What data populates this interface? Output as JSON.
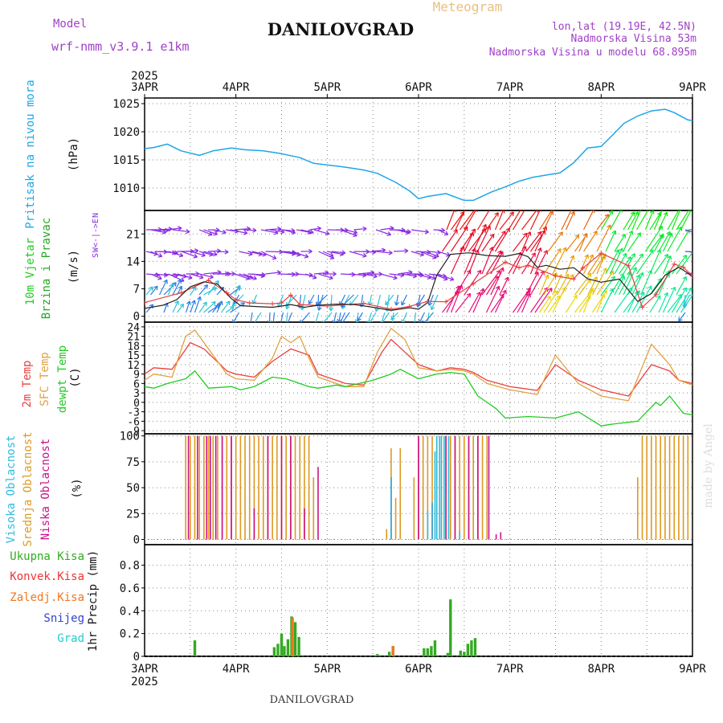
{
  "header": {
    "model_label": "Model",
    "model_name": "wrf-nmm_v3.9.1 e1km",
    "title": "DANILOVGRAD",
    "chart_kind": "Meteogram",
    "lonlat": "lon,lat (19.19E, 42.5N)",
    "elevation": "Nadmorska Visina 53m",
    "model_elevation": "Nadmorska Visina u modelu 68.895m",
    "footer_title": "DANILOVGRAD",
    "watermark": "made by Angel"
  },
  "colors": {
    "pressure": "#1ea6e8",
    "temp2m": "#e84040",
    "sfc": "#e2a040",
    "dew": "#22cc22",
    "high": "#33bbdd",
    "mid": "#dd9922",
    "low": "#cc1188",
    "total": "#33aa22",
    "conv": "#ee3333",
    "frozen": "#ee7722",
    "snow": "#3344cc",
    "graupel": "#22cccc",
    "wind_purple": "#8a2be2",
    "windlabel": "#22cc22",
    "brzina": "#22aa22"
  },
  "chart_data": {
    "type": "line",
    "x_unit": "days",
    "year": "2025",
    "x_ticks": [
      "3APR",
      "4APR",
      "5APR",
      "6APR",
      "7APR",
      "8APR",
      "9APR"
    ],
    "panels": [
      {
        "id": "pressure",
        "ylabel": "(hPa)",
        "side_labels": [
          "Pritisak na nivou mora"
        ],
        "ylim": [
          1006,
          1026
        ],
        "yticks": [
          1010,
          1015,
          1020,
          1025
        ],
        "series": [
          {
            "x": [
              0,
              0.1,
              0.25,
              0.4,
              0.6,
              0.75,
              0.95,
              1.1,
              1.3,
              1.5,
              1.7,
              1.85,
              2.05,
              2.2,
              2.4,
              2.55,
              2.75,
              2.9,
              3.0,
              3.1,
              3.3,
              3.5,
              3.6,
              3.8,
              3.95,
              4.1,
              4.25,
              4.4,
              4.55,
              4.7,
              4.85,
              5.0,
              5.1,
              5.25,
              5.4,
              5.55,
              5.7,
              5.8,
              5.95,
              6.0
            ],
            "y": [
              1017,
              1017.2,
              1017.8,
              1016.6,
              1015.8,
              1016.6,
              1017.1,
              1016.8,
              1016.6,
              1016.1,
              1015.4,
              1014.4,
              1014,
              1013.7,
              1013.2,
              1012.6,
              1011,
              1009.5,
              1008.1,
              1008.5,
              1009,
              1007.8,
              1007.8,
              1009.3,
              1010.2,
              1011.2,
              1011.9,
              1012.3,
              1012.7,
              1014.5,
              1017.1,
              1017.4,
              1019,
              1021.5,
              1022.8,
              1023.7,
              1024,
              1023.4,
              1022.1,
              1022
            ]
          }
        ]
      },
      {
        "id": "wind",
        "ylabel": "(m/s)",
        "side_labels": [
          "10m Vjetar",
          "Brzina i Pravac"
        ],
        "direction_key": [
          "N",
          "W<-|->E",
          "S"
        ],
        "ylim": [
          -1.5,
          27
        ],
        "yticks": [
          0,
          7,
          14,
          21
        ],
        "series": [
          {
            "name": "speed",
            "x": [
              0,
              0.2,
              0.35,
              0.5,
              0.65,
              0.8,
              0.95,
              1.05,
              1.2,
              1.4,
              1.5,
              1.6,
              1.75,
              1.9,
              2.1,
              2.3,
              2.5,
              2.7,
              2.9,
              3.0,
              3.1,
              3.2,
              3.35,
              3.55,
              3.75,
              3.95,
              4.1,
              4.2,
              4.3,
              4.4,
              4.55,
              4.7,
              4.85,
              5.0,
              5.2,
              5.4,
              5.55,
              5.7,
              5.85,
              5.95,
              6.0
            ],
            "y": [
              2,
              2.8,
              4.2,
              7.5,
              8.8,
              8.2,
              4.5,
              2.7,
              2.5,
              2.3,
              2.6,
              3,
              2.3,
              2.8,
              3.1,
              3,
              2.3,
              1.5,
              2.2,
              1.8,
              3.5,
              10.5,
              15.8,
              16.2,
              15.5,
              15.3,
              16,
              15.2,
              12.5,
              13,
              12,
              12.4,
              9.6,
              8.7,
              9.5,
              3.8,
              5.8,
              10.5,
              12.5,
              11,
              10
            ]
          },
          {
            "name": "gust",
            "x": [
              0,
              0.4,
              0.7,
              0.9,
              1.0,
              1.15,
              1.4,
              1.5,
              1.6,
              1.7,
              2.0,
              2.4,
              2.7,
              2.9,
              3.1,
              3.3,
              3.6,
              3.95,
              4.1,
              4.2,
              4.5,
              4.7,
              4.8,
              5.0,
              5.3,
              5.45,
              5.6,
              5.8,
              5.9,
              6.0
            ],
            "y": [
              3.5,
              6,
              9.2,
              6,
              4.2,
              3.4,
              3.2,
              3.4,
              5.4,
              3,
              2.6,
              3.3,
              1.8,
              2.5,
              3.8,
              3.7,
              8.3,
              13.8,
              12.4,
              13,
              10.3,
              9.5,
              12.3,
              16.1,
              12.9,
              2.3,
              5.5,
              13.3,
              12.5,
              10.3
            ]
          }
        ]
      },
      {
        "id": "temperature",
        "ylabel": "(C)",
        "side_labels": [
          "2m Temp",
          "SFC Temp",
          "dewpt Temp"
        ],
        "ylim": [
          -10,
          25.5
        ],
        "yticks": [
          -9,
          -6,
          -3,
          0,
          3,
          6,
          9,
          12,
          15,
          18,
          21,
          24
        ],
        "series": [
          {
            "name": "2m Temp",
            "x": [
              0,
              0.1,
              0.3,
              0.5,
              0.65,
              0.9,
              1.0,
              1.1,
              1.2,
              1.4,
              1.6,
              1.8,
              1.9,
              2.1,
              2.2,
              2.4,
              2.6,
              2.7,
              2.85,
              3.0,
              3.2,
              3.35,
              3.5,
              3.6,
              3.75,
              4.0,
              4.3,
              4.5,
              4.75,
              5.0,
              5.3,
              5.55,
              5.75,
              5.85,
              6.0
            ],
            "y": [
              9,
              11,
              10.5,
              19,
              17,
              10,
              9,
              8.5,
              8,
              13,
              17,
              15,
              9,
              7,
              6,
              5.5,
              16,
              20,
              16,
              12,
              10,
              11,
              10.5,
              9.5,
              7,
              5,
              3.8,
              12,
              7,
              4,
              2,
              12,
              10,
              7,
              6
            ]
          },
          {
            "name": "SFC Temp",
            "x": [
              0,
              0.1,
              0.3,
              0.45,
              0.55,
              0.65,
              0.9,
              1.0,
              1.2,
              1.4,
              1.5,
              1.6,
              1.7,
              1.8,
              1.9,
              2.1,
              2.2,
              2.4,
              2.55,
              2.7,
              2.85,
              3.0,
              3.2,
              3.35,
              3.5,
              3.6,
              3.75,
              4.0,
              4.3,
              4.5,
              4.75,
              5.0,
              5.3,
              5.55,
              5.75,
              5.85,
              6.0
            ],
            "y": [
              7,
              9,
              8,
              21,
              23,
              19,
              9,
              7.5,
              7,
              14,
              21,
              19,
              21,
              14,
              8,
              6,
              5,
              5,
              16,
              23.5,
              20,
              11,
              10,
              10.5,
              10,
              9,
              6,
              4,
              2.5,
              15,
              6,
              2,
              0.5,
              18.5,
              12,
              7,
              5.5
            ]
          },
          {
            "name": "dewpt Temp",
            "x": [
              0,
              0.1,
              0.25,
              0.45,
              0.55,
              0.7,
              0.95,
              1.05,
              1.2,
              1.4,
              1.55,
              1.8,
              1.9,
              2.1,
              2.2,
              2.5,
              2.7,
              2.8,
              3.0,
              3.2,
              3.35,
              3.5,
              3.65,
              3.85,
              3.95,
              4.2,
              4.5,
              4.75,
              5.0,
              5.1,
              5.4,
              5.6,
              5.65,
              5.75,
              5.9,
              6.0
            ],
            "y": [
              5,
              4.5,
              6,
              7.5,
              10,
              4.5,
              5,
              4,
              5,
              8,
              7.5,
              5,
              4.5,
              5.5,
              5,
              7,
              9,
              10.5,
              7.5,
              9,
              9.5,
              9,
              2,
              -2,
              -5,
              -4.5,
              -5,
              -3,
              -7.5,
              -7,
              -6,
              0,
              -1,
              2,
              -3.5,
              -4
            ]
          }
        ]
      },
      {
        "id": "clouds",
        "ylabel": "(%)",
        "side_labels": [
          "Visoka Oblacnost",
          "Srednja Oblacnost",
          "Niska Oblacnost"
        ],
        "ylim": [
          -5,
          102
        ],
        "yticks": [
          0,
          25,
          50,
          75,
          100
        ],
        "series": [
          {
            "name": "Srednja Oblacnost",
            "x": [
              0.45,
              0.5,
              0.55,
              0.6,
              0.65,
              0.7,
              0.75,
              0.8,
              0.85,
              0.9,
              0.95,
              1.0,
              1.05,
              1.1,
              1.15,
              1.2,
              1.25,
              1.3,
              1.35,
              1.4,
              1.45,
              1.5,
              1.55,
              1.6,
              1.65,
              1.7,
              1.75,
              1.8,
              1.85,
              2.65,
              2.7,
              2.75,
              2.8,
              2.95,
              3.0,
              3.05,
              3.1,
              3.15,
              3.2,
              3.25,
              3.3,
              3.35,
              3.4,
              3.45,
              3.5,
              3.55,
              3.6,
              3.65,
              3.7,
              3.75,
              5.4,
              5.45,
              5.5,
              5.55,
              5.6,
              5.65,
              5.7,
              5.75,
              5.8,
              5.85,
              5.9,
              5.95
            ],
            "y": [
              100,
              100,
              100,
              100,
              100,
              100,
              100,
              100,
              100,
              100,
              100,
              100,
              100,
              100,
              100,
              100,
              100,
              100,
              100,
              100,
              100,
              100,
              100,
              100,
              100,
              100,
              100,
              100,
              60,
              10,
              88,
              40,
              88,
              60,
              100,
              100,
              100,
              100,
              100,
              100,
              100,
              100,
              100,
              100,
              100,
              100,
              100,
              100,
              100,
              100,
              60,
              100,
              100,
              100,
              100,
              100,
              100,
              100,
              100,
              100,
              100,
              100
            ]
          },
          {
            "name": "Niska Oblacnost",
            "x": [
              0.48,
              0.58,
              0.68,
              0.72,
              0.78,
              0.85,
              0.95,
              1.2,
              1.35,
              1.5,
              1.6,
              1.75,
              1.9,
              2.7,
              3.0,
              3.15,
              3.3,
              3.4,
              3.55,
              3.65,
              3.77,
              3.85,
              3.9
            ],
            "y": [
              100,
              100,
              100,
              100,
              100,
              100,
              100,
              30,
              100,
              100,
              100,
              30,
              70,
              60,
              100,
              35,
              100,
              100,
              100,
              100,
              100,
              5,
              7
            ]
          },
          {
            "name": "Visoka Oblacnost",
            "x": [
              2.7,
              3.1,
              3.15,
              3.18,
              3.2,
              3.23,
              3.25,
              3.28,
              3.33,
              3.45
            ],
            "y": [
              60,
              28,
              36,
              85,
              100,
              100,
              100,
              100,
              100,
              8
            ]
          }
        ]
      },
      {
        "id": "precip",
        "ylabel": "1hr Precip (mm)",
        "side_labels": [
          "Ukupna Kisa",
          "Konvek.Kisa",
          "Zaledj.Kisa",
          "Snijeg",
          "Grad"
        ],
        "ylim": [
          0,
          0.98
        ],
        "yticks": [
          0,
          0.2,
          0.4,
          0.6,
          0.8
        ],
        "series": [
          {
            "name": "Ukupna Kisa",
            "x": [
              0.55,
              1.42,
              1.46,
              1.5,
              1.53,
              1.57,
              1.61,
              1.65,
              1.69,
              2.55,
              2.68,
              2.72,
              3.06,
              3.1,
              3.14,
              3.18,
              3.32,
              3.35,
              3.46,
              3.5,
              3.54,
              3.58,
              3.62
            ],
            "y": [
              0.14,
              0.08,
              0.11,
              0.2,
              0.09,
              0.15,
              0.35,
              0.3,
              0.17,
              0.02,
              0.04,
              0.09,
              0.07,
              0.07,
              0.09,
              0.14,
              0.03,
              0.5,
              0.05,
              0.04,
              0.11,
              0.14,
              0.16
            ]
          },
          {
            "name": "Zaledj.Kisa",
            "x": [
              1.62,
              2.72
            ],
            "y": [
              0.34,
              0.09
            ]
          }
        ]
      }
    ]
  }
}
